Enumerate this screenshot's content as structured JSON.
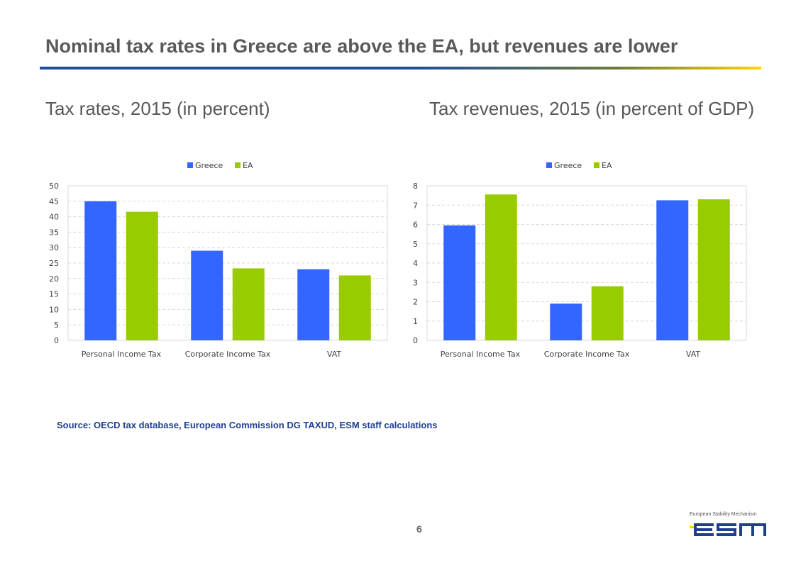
{
  "slide": {
    "title": "Nominal tax rates in Greece are above the EA, but revenues are lower",
    "source": "Source: OECD tax database, European Commission DG TAXUD, ESM staff calculations",
    "page_number": "6",
    "logo": {
      "caption": "European Stability Mechanism",
      "wordmark": "esm"
    }
  },
  "colors": {
    "greece": "#3366ff",
    "ea": "#99cc00",
    "title_rule": "#1f4e9a",
    "accent": "#ffd400"
  },
  "chart_data": [
    {
      "type": "bar",
      "heading": "Tax rates, 2015 (in percent)",
      "categories": [
        "Personal Income Tax",
        "Corporate Income Tax",
        "VAT"
      ],
      "series": [
        {
          "name": "Greece",
          "values": [
            45,
            29,
            23
          ]
        },
        {
          "name": "EA",
          "values": [
            41.6,
            23.3,
            21
          ]
        }
      ],
      "ylim": [
        0,
        50
      ],
      "yticks": [
        "0",
        "5",
        "10",
        "15",
        "20",
        "25",
        "30",
        "35",
        "40",
        "45",
        "50"
      ],
      "legend": "top-center",
      "grid": true
    },
    {
      "type": "bar",
      "heading": "Tax revenues, 2015 (in percent of GDP)",
      "categories": [
        "Personal Income Tax",
        "Corporate Income Tax",
        "VAT"
      ],
      "series": [
        {
          "name": "Greece",
          "values": [
            5.95,
            1.9,
            7.25
          ]
        },
        {
          "name": "EA",
          "values": [
            7.55,
            2.8,
            7.3
          ]
        }
      ],
      "ylim": [
        0,
        8
      ],
      "yticks": [
        "0",
        "1",
        "2",
        "3",
        "4",
        "5",
        "6",
        "7",
        "8"
      ],
      "legend": "top-center",
      "grid": true
    }
  ]
}
